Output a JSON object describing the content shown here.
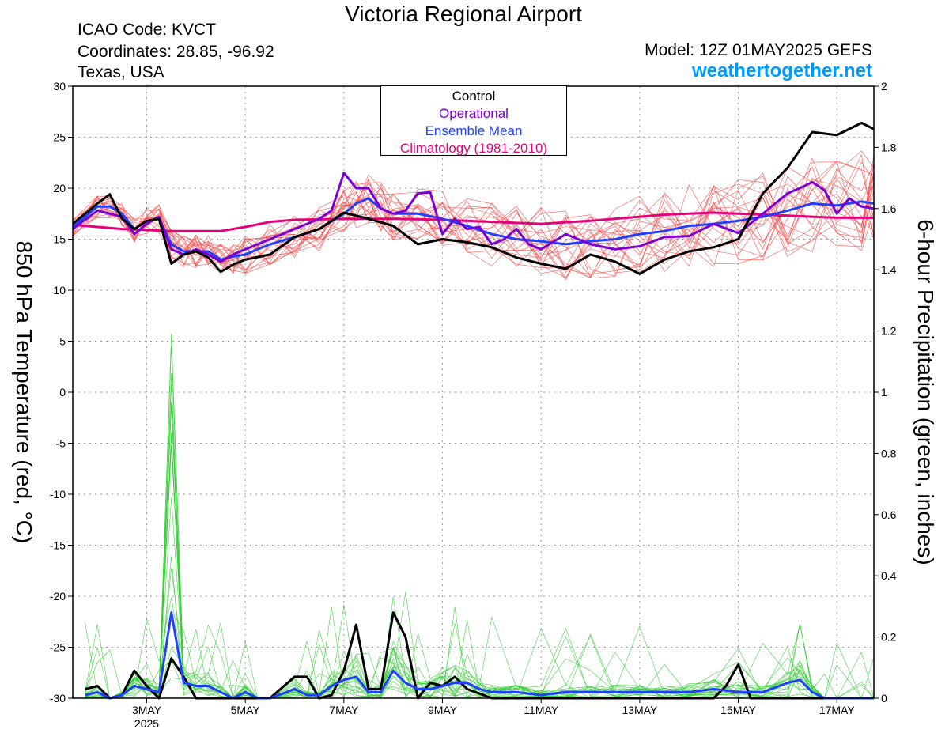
{
  "header": {
    "title": "Victoria Regional Airport",
    "icao": "ICAO Code: KVCT",
    "coordinates": "Coordinates: 28.85, -96.92",
    "location": "Texas, USA",
    "model": "Model: 12Z 01MAY2025 GEFS",
    "site": "weathertogether.net"
  },
  "legend": {
    "control": "Control",
    "operational": "Operational",
    "ensemble_mean": "Ensemble Mean",
    "climatology": "Climatology (1981-2010)"
  },
  "colors": {
    "control": "#000000",
    "operational": "#7a00d6",
    "ensemble_mean": "#2040ff",
    "climatology": "#e8007a",
    "members_temp": "#ff4040",
    "members_precip": "#33cc33",
    "site": "#0099ff"
  },
  "chart_data": {
    "type": "line",
    "ylabel": "850 hPa Temperature (red, °C)",
    "y2label": "6-hour Precipitation (green, inches)",
    "ylim": [
      -30,
      30
    ],
    "y2lim": [
      0,
      2
    ],
    "yticks": [
      30,
      25,
      20,
      15,
      10,
      5,
      0,
      -5,
      -10,
      -15,
      -20,
      -25,
      -30
    ],
    "y2ticks": [
      "2",
      "1.8",
      "1.6",
      "1.4",
      "1.2",
      "1",
      "0.8",
      "0.6",
      "0.4",
      "0.2",
      "0"
    ],
    "xlim": [
      1.5,
      17.75
    ],
    "x_units": "day of May 2025",
    "xticks": [
      {
        "x": 3,
        "label": "3MAY",
        "sub": "2025"
      },
      {
        "x": 5,
        "label": "5MAY",
        "sub": ""
      },
      {
        "x": 7,
        "label": "7MAY",
        "sub": ""
      },
      {
        "x": 9,
        "label": "9MAY",
        "sub": ""
      },
      {
        "x": 11,
        "label": "11MAY",
        "sub": ""
      },
      {
        "x": 13,
        "label": "13MAY",
        "sub": ""
      },
      {
        "x": 15,
        "label": "15MAY",
        "sub": ""
      },
      {
        "x": 17,
        "label": "17MAY",
        "sub": ""
      }
    ],
    "grid": true,
    "temperature_series": [
      {
        "name": "Control",
        "color": "#000000",
        "x": [
          1.5,
          2.0,
          2.25,
          2.5,
          2.75,
          3.0,
          3.25,
          3.5,
          3.75,
          4.0,
          4.25,
          4.5,
          4.75,
          5.0,
          5.5,
          6.0,
          6.5,
          7.0,
          7.5,
          8.0,
          8.5,
          9.0,
          9.5,
          10.0,
          10.5,
          11.0,
          11.5,
          12.0,
          12.5,
          13.0,
          13.5,
          14.0,
          14.5,
          15.0,
          15.5,
          16.0,
          16.5,
          17.0,
          17.5,
          17.75
        ],
        "y": [
          16.5,
          18.5,
          19.4,
          17.0,
          16.0,
          16.8,
          17.0,
          12.6,
          13.5,
          13.8,
          13.2,
          11.8,
          12.5,
          13.0,
          13.5,
          15.2,
          16.0,
          17.6,
          17.0,
          16.3,
          14.5,
          15.0,
          14.7,
          14.2,
          13.2,
          12.6,
          12.1,
          13.5,
          12.8,
          11.6,
          13.0,
          13.8,
          14.2,
          15.0,
          19.5,
          22.0,
          25.5,
          25.2,
          26.4,
          25.8
        ]
      },
      {
        "name": "Operational",
        "color": "#7a00d6",
        "x": [
          1.5,
          2.0,
          2.25,
          2.5,
          2.75,
          3.0,
          3.25,
          3.5,
          3.75,
          4.0,
          4.25,
          4.5,
          4.75,
          5.0,
          5.5,
          6.0,
          6.5,
          6.75,
          7.0,
          7.25,
          7.5,
          7.75,
          8.0,
          8.25,
          8.5,
          8.75,
          9.0,
          9.25,
          9.5,
          9.75,
          10.0,
          10.25,
          10.5,
          10.75,
          11.0,
          11.5,
          12.0,
          12.5,
          13.0,
          13.5,
          14.0,
          14.5,
          15.0,
          15.5,
          16.0,
          16.25,
          16.5,
          16.75,
          17.0,
          17.25,
          17.5,
          17.75
        ],
        "y": [
          16.0,
          17.8,
          17.5,
          17.2,
          15.5,
          16.5,
          17.2,
          14.0,
          13.5,
          14.0,
          13.5,
          12.8,
          13.5,
          14.0,
          15.0,
          16.0,
          17.0,
          17.8,
          21.5,
          20.0,
          20.0,
          18.0,
          17.5,
          17.8,
          19.5,
          19.6,
          15.5,
          17.0,
          16.0,
          16.2,
          14.5,
          15.0,
          16.0,
          14.5,
          14.0,
          15.5,
          14.5,
          14.0,
          14.3,
          15.2,
          15.3,
          16.5,
          15.6,
          17.5,
          19.5,
          20.0,
          20.6,
          19.8,
          17.5,
          19.0,
          18.2,
          18.0
        ]
      },
      {
        "name": "Ensemble Mean",
        "color": "#2040ff",
        "x": [
          1.5,
          2.0,
          2.25,
          2.5,
          2.75,
          3.0,
          3.25,
          3.5,
          3.75,
          4.0,
          4.25,
          4.5,
          4.75,
          5.0,
          5.5,
          6.0,
          6.5,
          7.0,
          7.25,
          7.5,
          7.75,
          8.0,
          8.5,
          9.0,
          9.5,
          10.0,
          10.5,
          11.0,
          11.5,
          12.0,
          12.5,
          13.0,
          13.5,
          14.0,
          14.5,
          15.0,
          15.5,
          16.0,
          16.5,
          17.0,
          17.5,
          17.75
        ],
        "y": [
          16.2,
          18.2,
          18.2,
          17.5,
          16.0,
          16.8,
          17.0,
          14.5,
          13.8,
          13.8,
          13.8,
          13.0,
          13.3,
          13.5,
          14.5,
          15.2,
          16.0,
          17.5,
          18.5,
          19.0,
          18.0,
          17.5,
          17.5,
          17.0,
          16.3,
          15.5,
          15.0,
          14.8,
          14.5,
          14.8,
          15.0,
          15.5,
          15.8,
          16.3,
          16.5,
          16.8,
          17.2,
          17.8,
          18.5,
          18.3,
          18.7,
          18.5
        ]
      },
      {
        "name": "Climatology (1981-2010)",
        "color": "#e8007a",
        "x": [
          1.5,
          2.0,
          2.5,
          3.0,
          3.5,
          4.0,
          4.5,
          5.0,
          5.5,
          6.0,
          7.0,
          8.0,
          9.0,
          10.0,
          11.0,
          12.0,
          13.0,
          13.5,
          14.0,
          14.5,
          15.0,
          15.5,
          16.0,
          16.5,
          17.0,
          17.5,
          17.75
        ],
        "y": [
          16.4,
          16.2,
          16.0,
          15.9,
          15.8,
          15.8,
          15.8,
          16.2,
          16.7,
          16.9,
          17.0,
          17.0,
          16.9,
          16.7,
          16.5,
          16.8,
          17.2,
          17.4,
          17.5,
          17.6,
          17.5,
          17.4,
          17.3,
          17.2,
          17.1,
          17.1,
          17.1
        ]
      }
    ],
    "precipitation_series": [
      {
        "name": "Control",
        "color": "#000000",
        "x": [
          1.75,
          2.0,
          2.25,
          2.5,
          2.75,
          3.0,
          3.25,
          3.5,
          3.75,
          4.0,
          5.0,
          5.5,
          6.0,
          6.25,
          6.5,
          6.75,
          7.0,
          7.25,
          7.5,
          7.75,
          8.0,
          8.25,
          8.5,
          8.75,
          9.0,
          9.25,
          9.5,
          10.0,
          11.0,
          12.0,
          13.0,
          14.0,
          14.5,
          14.75,
          15.0,
          15.25,
          15.5,
          16.0,
          16.5,
          17.0,
          17.5,
          17.75
        ],
        "y": [
          0.03,
          0.04,
          0.0,
          0.01,
          0.09,
          0.04,
          0.0,
          0.13,
          0.07,
          0.0,
          0.0,
          0.0,
          0.07,
          0.07,
          0.0,
          0.01,
          0.09,
          0.24,
          0.03,
          0.03,
          0.28,
          0.2,
          0.0,
          0.05,
          0.04,
          0.07,
          0.03,
          0.0,
          0.0,
          0.0,
          0.0,
          0.0,
          0.0,
          0.04,
          0.11,
          0.0,
          0.0,
          0.0,
          0.0,
          0.0,
          0.0,
          0.0
        ]
      },
      {
        "name": "Ensemble Mean",
        "color": "#2040ff",
        "x": [
          1.75,
          2.0,
          2.25,
          2.5,
          2.75,
          3.0,
          3.25,
          3.5,
          3.75,
          4.0,
          4.25,
          4.5,
          4.75,
          5.0,
          5.25,
          5.5,
          6.0,
          6.25,
          6.5,
          6.75,
          7.0,
          7.25,
          7.5,
          7.75,
          8.0,
          8.25,
          8.5,
          8.75,
          9.0,
          9.25,
          9.5,
          9.75,
          10.0,
          10.5,
          11.0,
          11.5,
          12.0,
          12.5,
          13.0,
          13.5,
          14.0,
          14.5,
          15.0,
          15.5,
          16.0,
          16.25,
          16.5,
          16.75,
          17.0,
          17.5,
          17.75
        ],
        "y": [
          0.01,
          0.02,
          0.0,
          0.01,
          0.04,
          0.03,
          0.02,
          0.28,
          0.05,
          0.04,
          0.04,
          0.02,
          0.0,
          0.02,
          0.0,
          0.0,
          0.03,
          0.01,
          0.01,
          0.04,
          0.06,
          0.07,
          0.02,
          0.02,
          0.09,
          0.05,
          0.03,
          0.03,
          0.04,
          0.05,
          0.05,
          0.03,
          0.02,
          0.02,
          0.01,
          0.02,
          0.02,
          0.02,
          0.02,
          0.02,
          0.02,
          0.03,
          0.02,
          0.02,
          0.05,
          0.06,
          0.02,
          0.0,
          0.0,
          0.0,
          0.0
        ]
      }
    ]
  }
}
